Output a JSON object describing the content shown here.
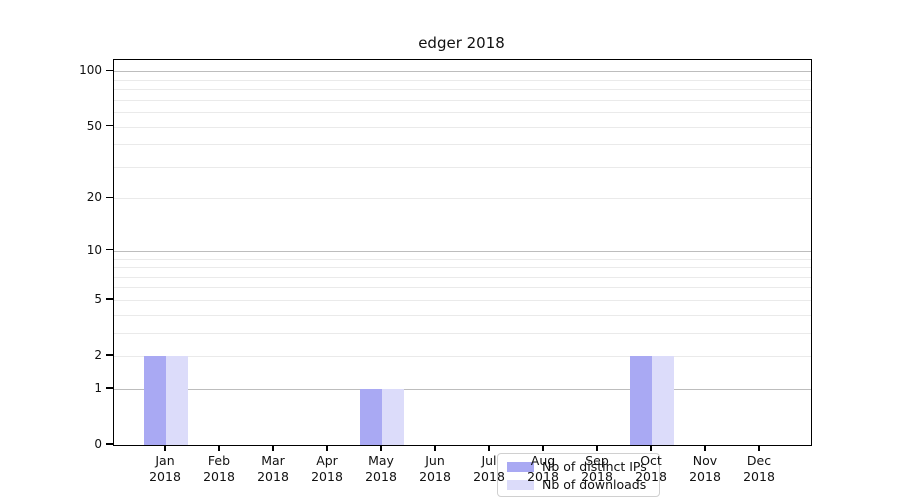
{
  "chart_data": {
    "type": "bar",
    "title": "edger 2018",
    "categories": [
      "Jan",
      "Feb",
      "Mar",
      "Apr",
      "May",
      "Jun",
      "Jul",
      "Aug",
      "Sep",
      "Oct",
      "Nov",
      "Dec"
    ],
    "year_label": "2018",
    "series": [
      {
        "name": "Nb of distinct IPs",
        "color": "#a9a9f3",
        "values": [
          2,
          0,
          0,
          0,
          1,
          0,
          0,
          0,
          0,
          2,
          0,
          0
        ]
      },
      {
        "name": "Nb of downloads",
        "color": "#dcdcfa",
        "values": [
          2,
          0,
          0,
          0,
          1,
          0,
          0,
          0,
          0,
          2,
          0,
          0
        ]
      }
    ],
    "xlabel": "",
    "ylabel": "",
    "yscale": "log1p",
    "ylim": [
      0,
      115
    ],
    "ytick_labels": [
      0,
      1,
      2,
      5,
      10,
      20,
      50,
      100
    ],
    "major_gridlines": [
      1,
      10,
      100
    ],
    "minor_gridlines": [
      2,
      3,
      4,
      5,
      6,
      7,
      8,
      9,
      20,
      30,
      40,
      50,
      60,
      70,
      80,
      90
    ],
    "grid": true,
    "legend": {
      "position": "lower-center",
      "entries": [
        "Nb of distinct IPs",
        "Nb of downloads"
      ]
    },
    "colors": {
      "bar_distinct_ips": "#a9a9f3",
      "bar_downloads": "#dcdcfa",
      "major_grid": "#bdbdbd",
      "minor_grid": "#eaeaea",
      "axis": "#000000"
    }
  }
}
